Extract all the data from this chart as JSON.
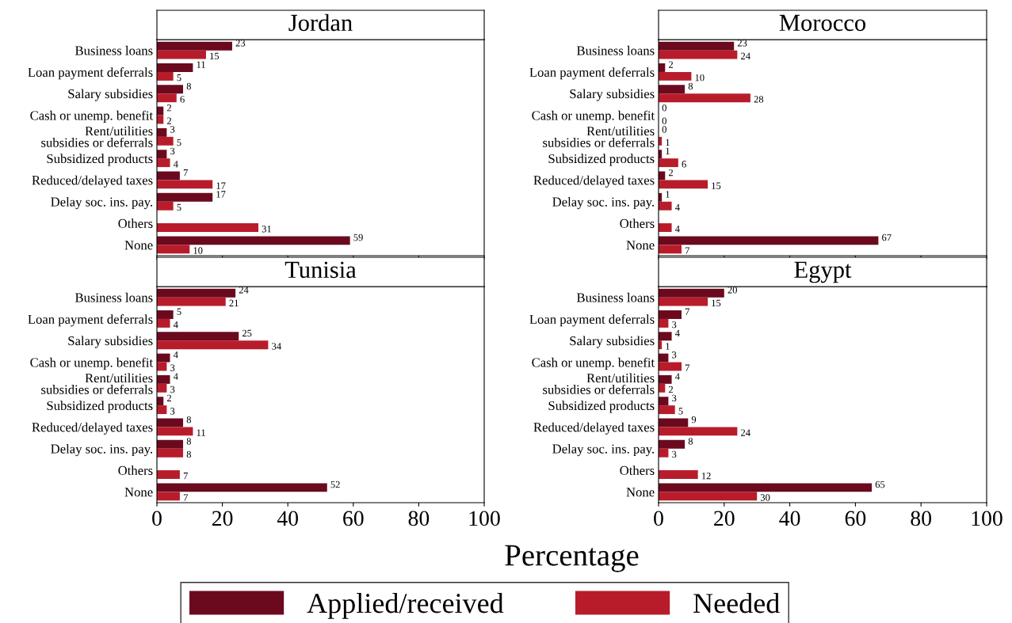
{
  "chart_data": [
    {
      "type": "bar",
      "orientation": "horizontal",
      "title": "Jordan",
      "categories": [
        "Business loans",
        "Loan payment deferrals",
        "Salary subsidies",
        "Cash or unemp. benefit",
        "Rent/utilities\nsubsidies or deferrals",
        "Subsidized products",
        "Reduced/delayed taxes",
        "Delay soc. ins. pay.",
        "Others",
        "None"
      ],
      "series": [
        {
          "name": "Applied/received",
          "color": "#6b0a1e",
          "values": [
            23,
            11,
            8,
            2,
            3,
            3,
            7,
            17,
            null,
            59
          ]
        },
        {
          "name": "Needed",
          "color": "#b81c2b",
          "values": [
            15,
            5,
            6,
            2,
            5,
            4,
            17,
            5,
            31,
            10
          ]
        }
      ],
      "xlim": [
        0,
        100
      ],
      "xticks": [
        0,
        20,
        40,
        60,
        80,
        100
      ],
      "tick_labels": "y",
      "data_labels": true,
      "legend": "bottom"
    },
    {
      "type": "bar",
      "orientation": "horizontal",
      "title": "Morocco",
      "categories": [
        "Business loans",
        "Loan payment deferrals",
        "Salary subsidies",
        "Cash or unemp. benefit",
        "Rent/utilities\nsubsidies or deferrals",
        "Subsidized products",
        "Reduced/delayed taxes",
        "Delay soc. ins. pay.",
        "Others",
        "None"
      ],
      "series": [
        {
          "color": "#6b0a1e",
          "values": [
            23,
            2,
            8,
            0,
            0,
            1,
            2,
            1,
            null,
            67
          ]
        },
        {
          "color": "#b81c2b",
          "values": [
            24,
            10,
            28,
            0,
            1,
            6,
            15,
            4,
            4,
            7
          ]
        }
      ],
      "xlim": [
        0,
        100
      ],
      "xticks": [
        0,
        20,
        40,
        60,
        80,
        100
      ],
      "tick_labels": "y",
      "data_labels": true
    },
    {
      "type": "bar",
      "orientation": "horizontal",
      "title": "Tunisia",
      "categories": [
        "Business loans",
        "Loan payment deferrals",
        "Salary subsidies",
        "Cash or unemp. benefit",
        "Rent/utilities\nsubsidies or deferrals",
        "Subsidized products",
        "Reduced/delayed taxes",
        "Delay soc. ins. pay.",
        "Others",
        "None"
      ],
      "series": [
        {
          "color": "#6b0a1e",
          "values": [
            24,
            5,
            25,
            4,
            4,
            2,
            8,
            8,
            null,
            52
          ]
        },
        {
          "color": "#b81c2b",
          "values": [
            21,
            4,
            34,
            3,
            3,
            3,
            11,
            8,
            7,
            7
          ]
        }
      ],
      "xlim": [
        0,
        100
      ],
      "xticks": [
        0,
        20,
        40,
        60,
        80,
        100
      ],
      "xlabel": "Percentage",
      "data_labels": true
    },
    {
      "type": "bar",
      "orientation": "horizontal",
      "title": "Egypt",
      "categories": [
        "Business loans",
        "Loan payment deferrals",
        "Salary subsidies",
        "Cash or unemp. benefit",
        "Rent/utilities\nsubsidies or deferrals",
        "Subsidized products",
        "Reduced/delayed taxes",
        "Delay soc. ins. pay.",
        "Others",
        "None"
      ],
      "series": [
        {
          "color": "#6b0a1e",
          "values": [
            20,
            7,
            4,
            3,
            4,
            3,
            9,
            8,
            null,
            65
          ]
        },
        {
          "color": "#b81c2b",
          "values": [
            15,
            3,
            1,
            7,
            2,
            5,
            24,
            3,
            12,
            30
          ]
        }
      ],
      "xlim": [
        0,
        100
      ],
      "xticks": [
        0,
        20,
        40,
        60,
        80,
        100
      ],
      "data_labels": true
    }
  ]
}
